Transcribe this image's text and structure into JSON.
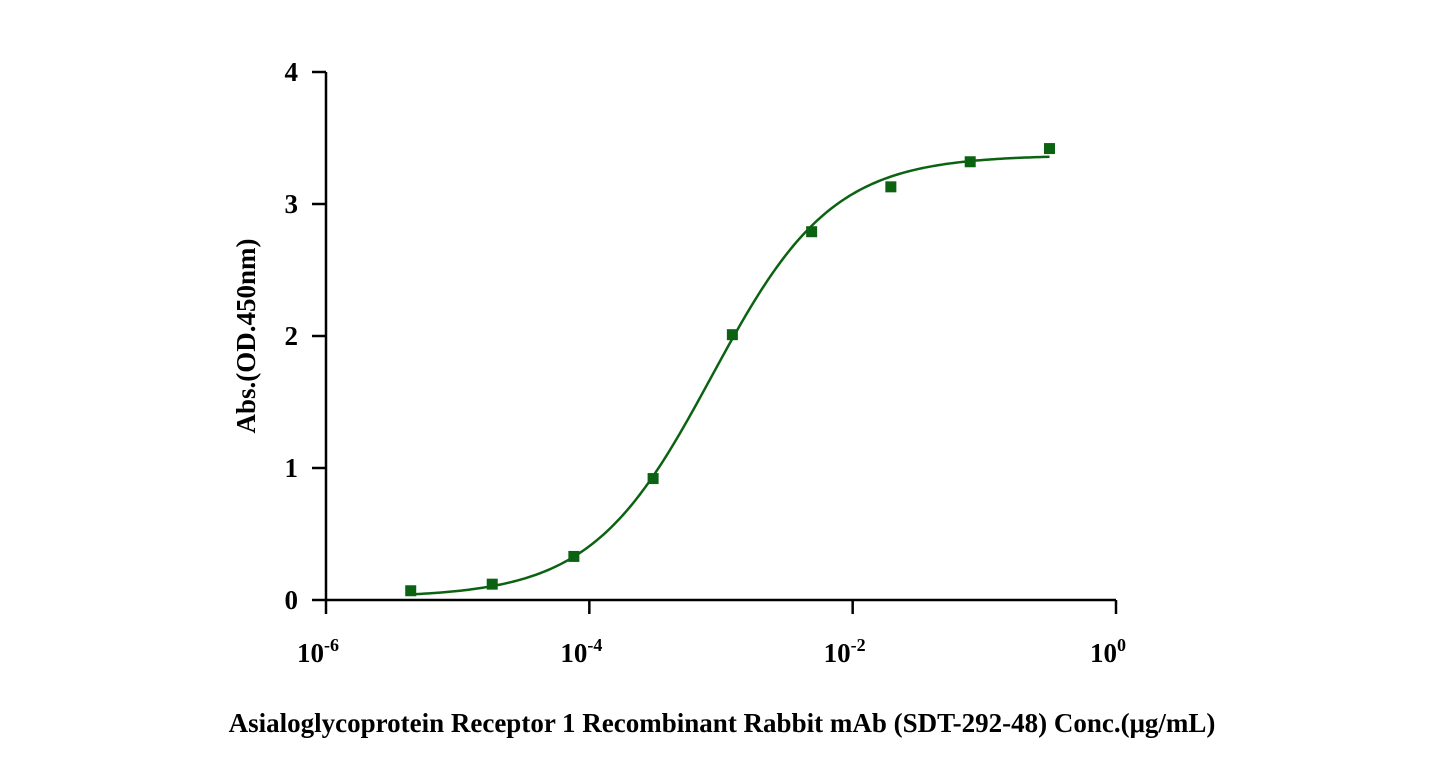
{
  "chart_data": {
    "type": "scatter",
    "title": "",
    "xlabel": "Asialoglycoprotein Receptor 1 Recombinant Rabbit mAb (SDT-292-48) Conc.(μg/mL)",
    "ylabel": "Abs.(OD.450nm)",
    "x_scale": "log",
    "xlim": [
      1e-06,
      1
    ],
    "ylim": [
      0,
      4
    ],
    "x_ticks": [
      {
        "base": "10",
        "exp": "-6",
        "value": 1e-06
      },
      {
        "base": "10",
        "exp": "-4",
        "value": 0.0001
      },
      {
        "base": "10",
        "exp": "-2",
        "value": 0.01
      },
      {
        "base": "10",
        "exp": "0",
        "value": 1
      }
    ],
    "y_ticks": [
      "0",
      "1",
      "2",
      "3",
      "4"
    ],
    "grid": false,
    "legend": "none",
    "color": "#0b6312",
    "series": [
      {
        "marker": "square",
        "x": [
          4.4e-06,
          1.83e-05,
          7.63e-05,
          0.000305,
          0.00122,
          0.00488,
          0.0195,
          0.0781,
          0.3125
        ],
        "y": [
          0.07,
          0.12,
          0.33,
          0.92,
          2.01,
          2.79,
          3.13,
          3.32,
          3.42
        ]
      }
    ],
    "fit_curve": {
      "model": "4PL",
      "bottom": 0.02,
      "top": 3.37,
      "ec50": 0.00085,
      "hill": 0.95,
      "x_range": [
        4.4e-06,
        0.3125
      ]
    }
  }
}
